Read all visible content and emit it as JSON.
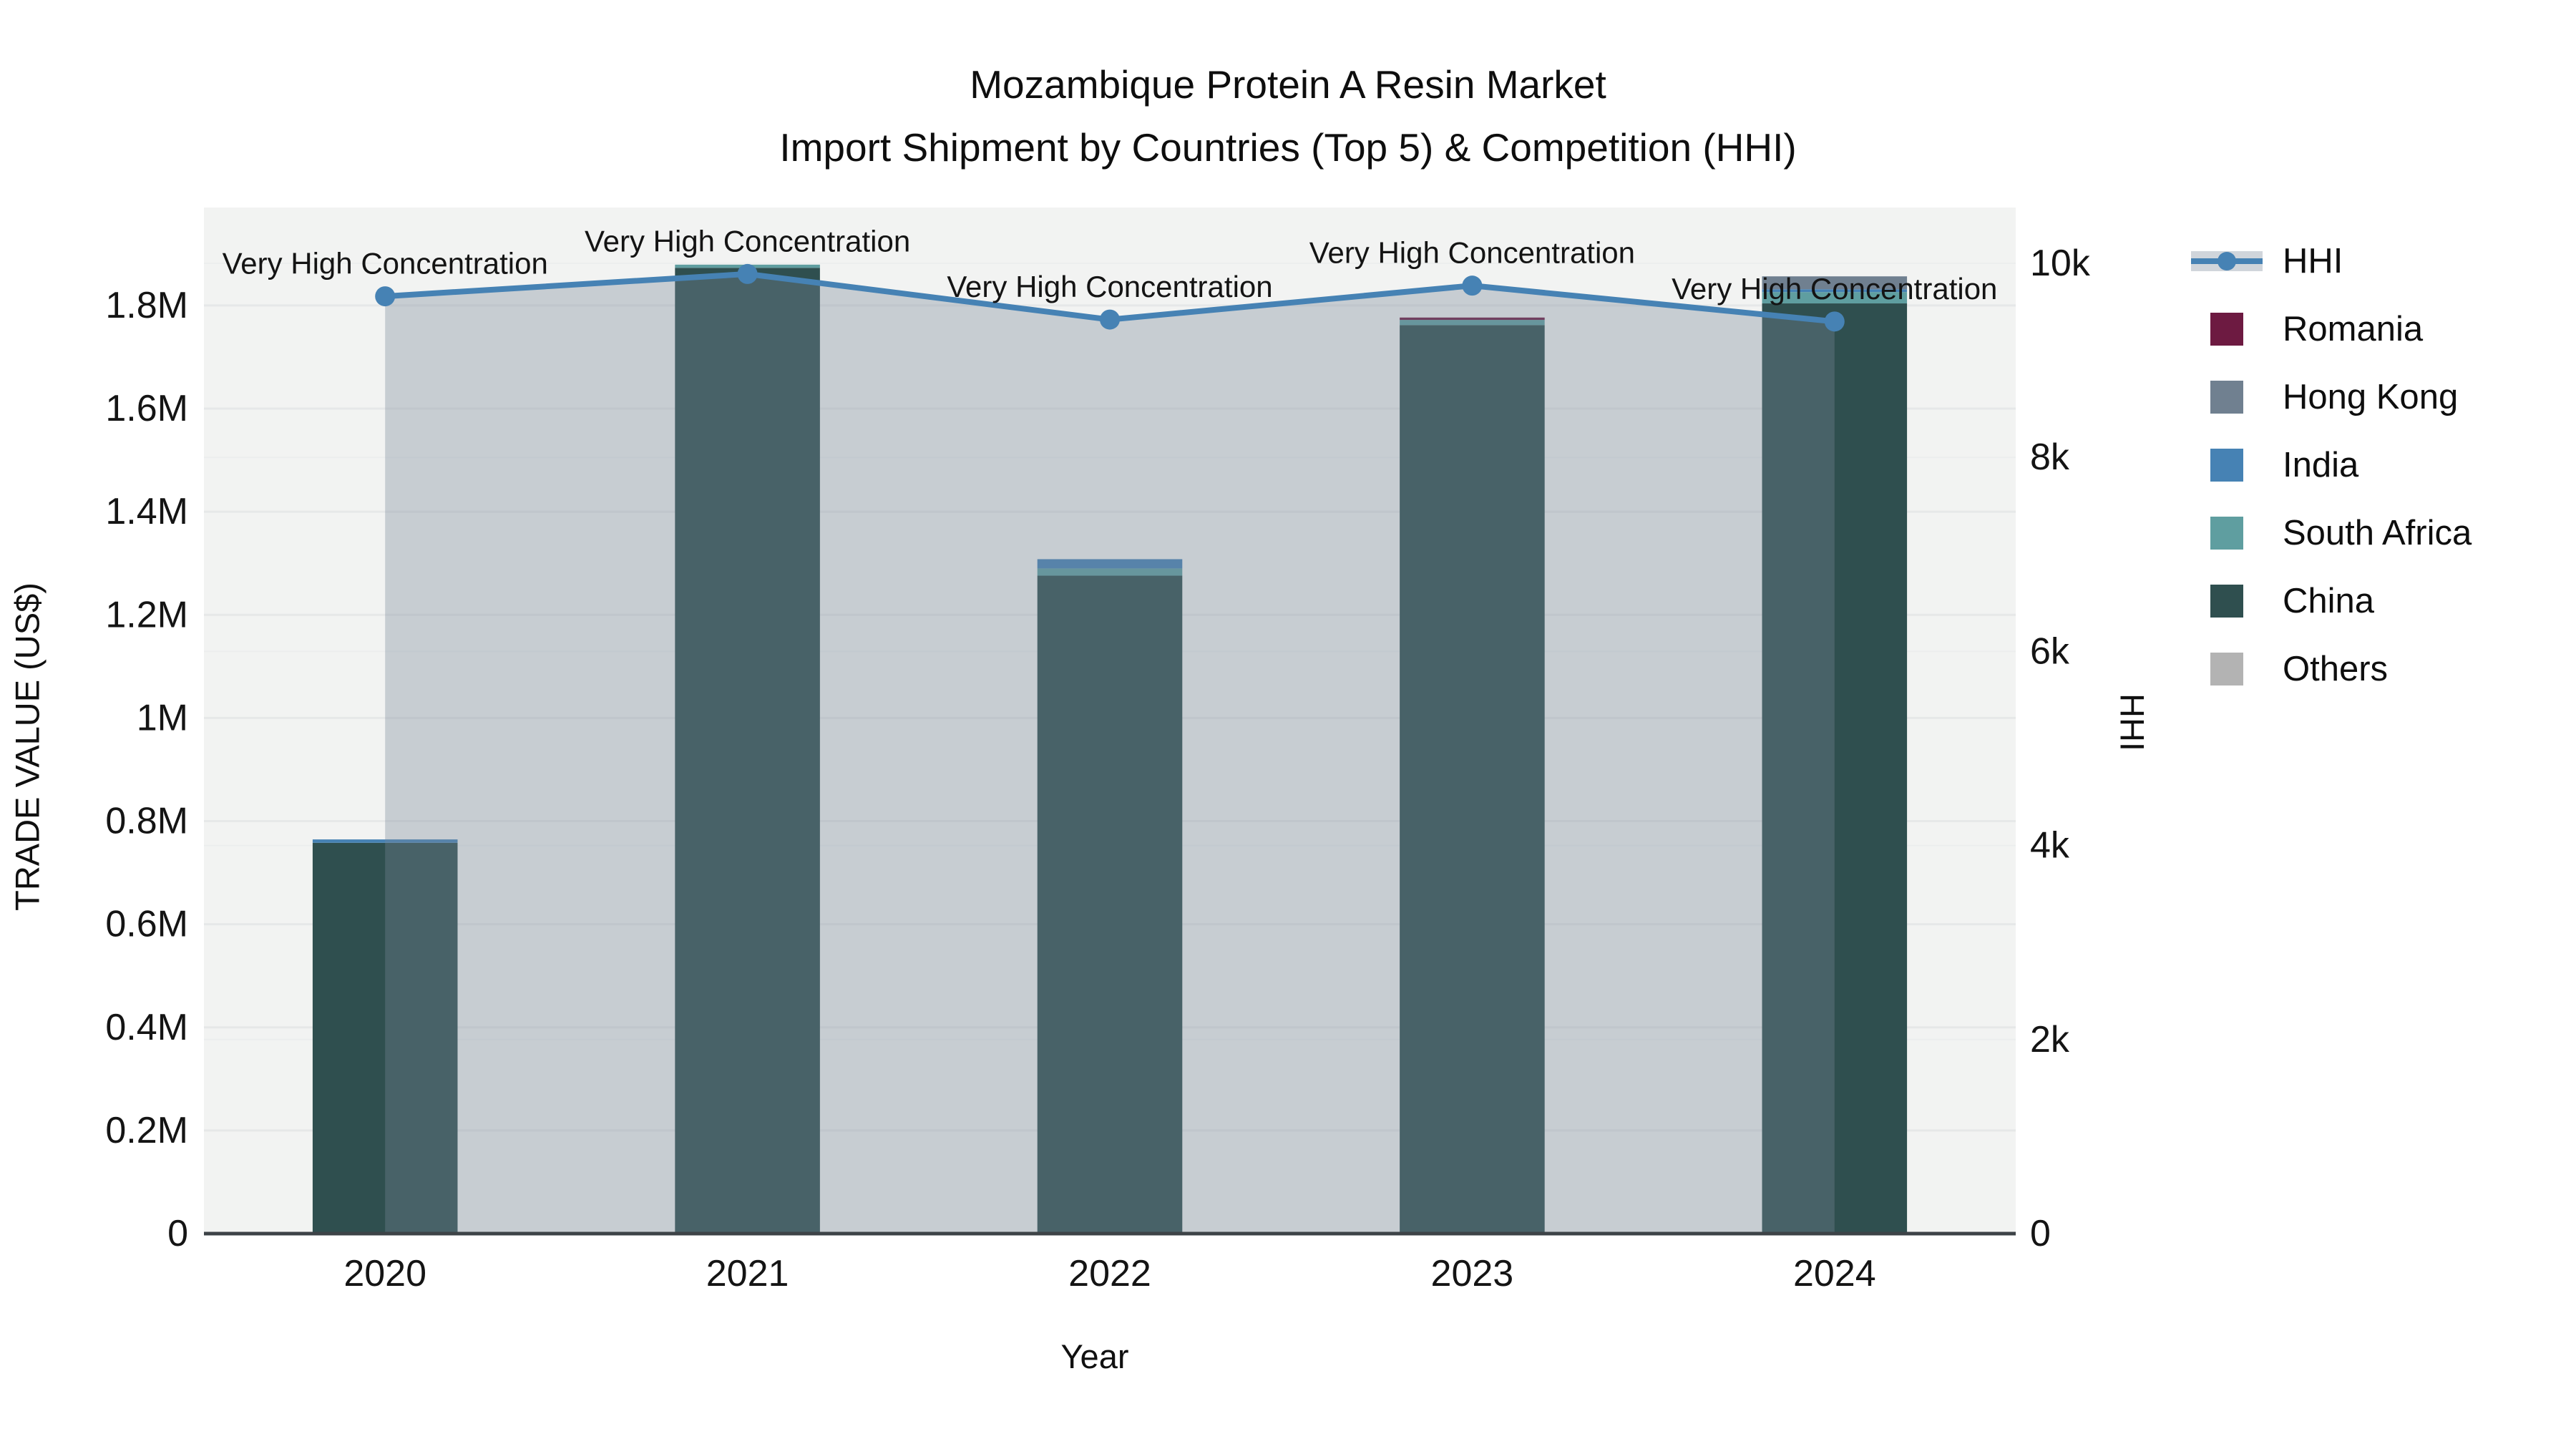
{
  "title": {
    "line1": "Mozambique Protein A Resin Market",
    "line2": "Import Shipment by Countries (Top 5) & Competition (HHI)"
  },
  "chart_data": {
    "type": "bar",
    "subtype": "stacked-bars-with-line",
    "categories": [
      "2020",
      "2021",
      "2022",
      "2023",
      "2024"
    ],
    "xlabel": "Year",
    "ylabel": "TRADE VALUE (US$)",
    "ylabel2": "HHI",
    "ylim_left": [
      0,
      1990000
    ],
    "ylim_right": [
      0,
      10575
    ],
    "yticks_left": [
      {
        "v": 0,
        "label": "0"
      },
      {
        "v": 200000,
        "label": "0.2M"
      },
      {
        "v": 400000,
        "label": "0.4M"
      },
      {
        "v": 600000,
        "label": "0.6M"
      },
      {
        "v": 800000,
        "label": "0.8M"
      },
      {
        "v": 1000000,
        "label": "1M"
      },
      {
        "v": 1200000,
        "label": "1.2M"
      },
      {
        "v": 1400000,
        "label": "1.4M"
      },
      {
        "v": 1600000,
        "label": "1.6M"
      },
      {
        "v": 1800000,
        "label": "1.8M"
      }
    ],
    "yticks_right": [
      {
        "v": 0,
        "label": "0"
      },
      {
        "v": 2000,
        "label": "2k"
      },
      {
        "v": 4000,
        "label": "4k"
      },
      {
        "v": 6000,
        "label": "6k"
      },
      {
        "v": 8000,
        "label": "8k"
      },
      {
        "v": 10000,
        "label": "10k"
      }
    ],
    "bar_series": [
      {
        "name": "China",
        "color": "#2f4f4f",
        "values": [
          758000,
          1873000,
          1276000,
          1762000,
          1804000
        ]
      },
      {
        "name": "South Africa",
        "color": "#5f9ea0",
        "values": [
          0,
          6200,
          14000,
          10000,
          22000
        ]
      },
      {
        "name": "India",
        "color": "#4682b4",
        "values": [
          6500,
          0,
          18000,
          0,
          5500
        ]
      },
      {
        "name": "Hong Kong",
        "color": "#708090",
        "values": [
          0,
          0,
          0,
          0,
          25000
        ]
      },
      {
        "name": "Romania",
        "color": "#6d1a41",
        "values": [
          0,
          0,
          0,
          4600,
          0
        ]
      },
      {
        "name": "Others",
        "color": "#b3b3b3",
        "values": [
          0,
          0,
          0,
          0,
          0
        ]
      }
    ],
    "line_series": {
      "name": "HHI",
      "color": "#4682b4",
      "fill_color": "rgba(119,136,153,0.35)",
      "values": [
        9660,
        9890,
        9420,
        9770,
        9400
      ]
    },
    "annotations": [
      {
        "x": "2020",
        "text": "Very High Concentration"
      },
      {
        "x": "2021",
        "text": "Very High Concentration"
      },
      {
        "x": "2022",
        "text": "Very High Concentration"
      },
      {
        "x": "2023",
        "text": "Very High Concentration"
      },
      {
        "x": "2024",
        "text": "Very High Concentration"
      }
    ],
    "legend": {
      "items": [
        {
          "label": "HHI",
          "type": "line",
          "color": "#4682b4"
        },
        {
          "label": "Romania",
          "type": "square",
          "color": "#6d1a41"
        },
        {
          "label": "Hong Kong",
          "type": "square",
          "color": "#708090"
        },
        {
          "label": "India",
          "type": "square",
          "color": "#4682b4"
        },
        {
          "label": "South Africa",
          "type": "square",
          "color": "#5f9ea0"
        },
        {
          "label": "China",
          "type": "square",
          "color": "#2f4f4f"
        },
        {
          "label": "Others",
          "type": "square",
          "color": "#b3b3b3"
        }
      ]
    },
    "plot_bg": "#f2f3f2",
    "grid_color": "#e6e8e8",
    "axisline_color": "#3d4347"
  }
}
